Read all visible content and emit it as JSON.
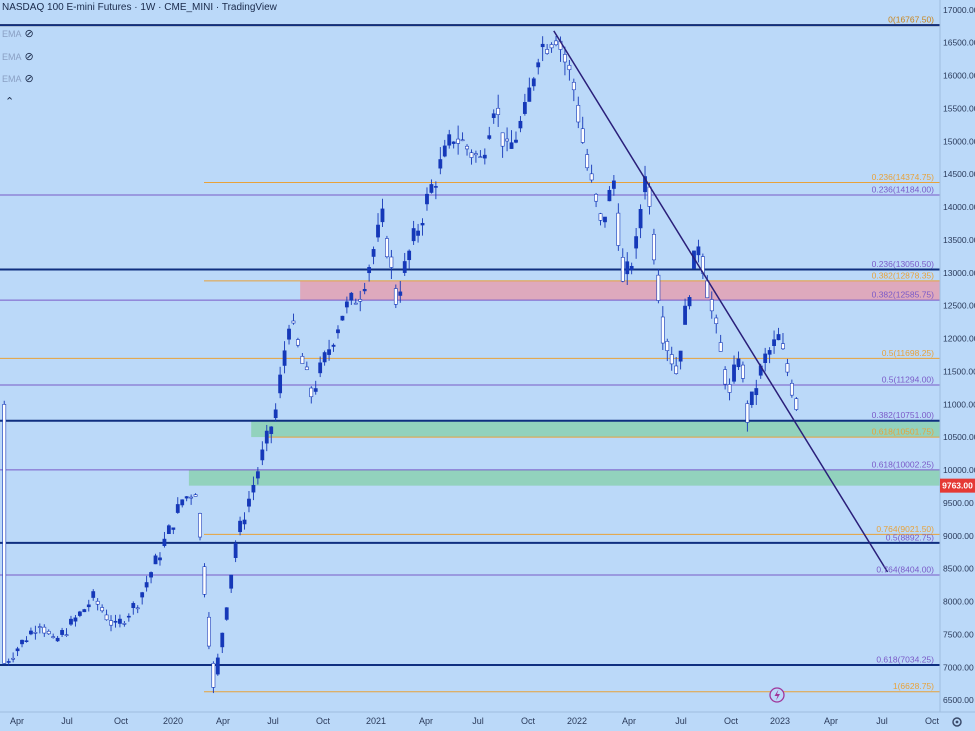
{
  "header": {
    "title": "NASDAQ 100 E-mini Futures · 1W · CME_MINI · TradingView"
  },
  "indicators": [
    {
      "label": "EMA",
      "icon": "eye-off-icon"
    },
    {
      "label": "EMA",
      "icon": "eye-off-icon"
    },
    {
      "label": "EMA",
      "icon": "eye-off-icon"
    }
  ],
  "collapse_icon": "chevron-up-icon",
  "colors": {
    "background": "#bbd9f9",
    "up_candle": "#1538b8",
    "down_candle": "#ffffff",
    "fib_orange": "#e8a23a",
    "fib_purple": "#7a5ac8",
    "trendline": "#2a1f7a",
    "major_level": "#0f2f80",
    "resistance_zone": "#e2a3b6",
    "support_zone": "#8ed0b6",
    "price_tag": "#e53935"
  },
  "chart_data": {
    "type": "candlestick",
    "title": "NASDAQ 100 E-mini Futures",
    "interval": "1W",
    "exchange": "CME_MINI",
    "x_ticks": [
      "Apr",
      "Jul",
      "Oct",
      "2020",
      "Apr",
      "Jul",
      "Oct",
      "2021",
      "Apr",
      "Jul",
      "Oct",
      "2022",
      "Apr",
      "Jul",
      "Oct",
      "2023",
      "Apr",
      "Jul",
      "Oct"
    ],
    "y_ticks": [
      6500,
      7000,
      7500,
      8000,
      8500,
      9000,
      9500,
      10000,
      10500,
      11000,
      11500,
      12000,
      12500,
      13000,
      13500,
      14000,
      14500,
      15000,
      15500,
      16000,
      16500,
      17000
    ],
    "ylim": [
      6320,
      17150
    ],
    "last_price": "9763.00",
    "fib_levels": [
      {
        "label": "0(16767.50)",
        "value": 16767.5,
        "color": "#c9841a",
        "major": true
      },
      {
        "label": "0.236(14374.75)",
        "value": 14374.75,
        "color": "#e8a23a"
      },
      {
        "label": "0.236(14184.00)",
        "value": 14184.0,
        "color": "#7a5ac8"
      },
      {
        "label": "0.236(13050.50)",
        "value": 13050.5,
        "color": "#7a5ac8"
      },
      {
        "label": "0.382(12878.35)",
        "value": 12878.35,
        "color": "#e8a23a"
      },
      {
        "label": "0.382(12585.75)",
        "value": 12585.75,
        "color": "#7a5ac8"
      },
      {
        "label": "0.5(11698.25)",
        "value": 11698.25,
        "color": "#e8a23a"
      },
      {
        "label": "0.5(11294.00)",
        "value": 11294.0,
        "color": "#7a5ac8"
      },
      {
        "label": "0.382(10751.00)",
        "value": 10751.0,
        "color": "#7a5ac8"
      },
      {
        "label": "0.618(10501.75)",
        "value": 10501.75,
        "color": "#e8a23a"
      },
      {
        "label": "0.618(10002.25)",
        "value": 10002.25,
        "color": "#7a5ac8"
      },
      {
        "label": "0.764(9021.50)",
        "value": 9021.5,
        "color": "#e8a23a"
      },
      {
        "label": "0.5(8892.75)",
        "value": 8892.75,
        "color": "#7a5ac8"
      },
      {
        "label": "0.764(8404.00)",
        "value": 8404.0,
        "color": "#7a5ac8"
      },
      {
        "label": "0.618(7034.25)",
        "value": 7034.25,
        "color": "#7a5ac8"
      },
      {
        "label": "1(6628.75)",
        "value": 6628.75,
        "color": "#e8a23a"
      }
    ],
    "major_levels": [
      16767.5,
      13050.5,
      10751.0,
      8892.75,
      7034.25
    ],
    "zones": [
      {
        "name": "resistance",
        "low": 12585.75,
        "high": 12878.35,
        "start_index": 67,
        "color": "#e2a3b6"
      },
      {
        "name": "support-upper",
        "low": 10501.75,
        "high": 10751.0,
        "start_index": 56,
        "color": "#8ed0b6"
      },
      {
        "name": "support-lower",
        "low": 9763.0,
        "high": 10002.25,
        "start_index": 42,
        "color": "#8ed0b6"
      }
    ],
    "trendline": {
      "start": {
        "index": 124,
        "value": 16680
      },
      "end": {
        "index": 199,
        "value": 8450
      }
    },
    "anchor_points": [
      [
        0,
        7060
      ],
      [
        8,
        7700
      ],
      [
        11,
        7360
      ],
      [
        15,
        7650
      ],
      [
        20,
        8050
      ],
      [
        25,
        7600
      ],
      [
        30,
        8000
      ],
      [
        35,
        8750
      ],
      [
        40,
        9550
      ],
      [
        43,
        9700
      ],
      [
        45,
        8200
      ],
      [
        47,
        6650
      ],
      [
        52,
        8900
      ],
      [
        57,
        10000
      ],
      [
        61,
        10900
      ],
      [
        64,
        12300
      ],
      [
        69,
        11150
      ],
      [
        71,
        11500
      ],
      [
        76,
        12400
      ],
      [
        80,
        12700
      ],
      [
        85,
        13800
      ],
      [
        88,
        12600
      ],
      [
        91,
        13300
      ],
      [
        96,
        14300
      ],
      [
        101,
        15100
      ],
      [
        107,
        14700
      ],
      [
        110,
        15600
      ],
      [
        113,
        14800
      ],
      [
        117,
        15400
      ],
      [
        120,
        16400
      ],
      [
        124,
        16650
      ],
      [
        128,
        15800
      ],
      [
        131,
        14600
      ],
      [
        134,
        13700
      ],
      [
        137,
        14400
      ],
      [
        139,
        12800
      ],
      [
        142,
        13400
      ],
      [
        144,
        14600
      ],
      [
        148,
        12100
      ],
      [
        151,
        11500
      ],
      [
        154,
        12800
      ],
      [
        156,
        13500
      ],
      [
        159,
        12400
      ],
      [
        163,
        11100
      ],
      [
        165,
        11800
      ],
      [
        167,
        10800
      ],
      [
        169,
        11300
      ],
      [
        171,
        11700
      ],
      [
        174,
        12000
      ],
      [
        178,
        11000
      ]
    ],
    "total_bars": 179
  }
}
